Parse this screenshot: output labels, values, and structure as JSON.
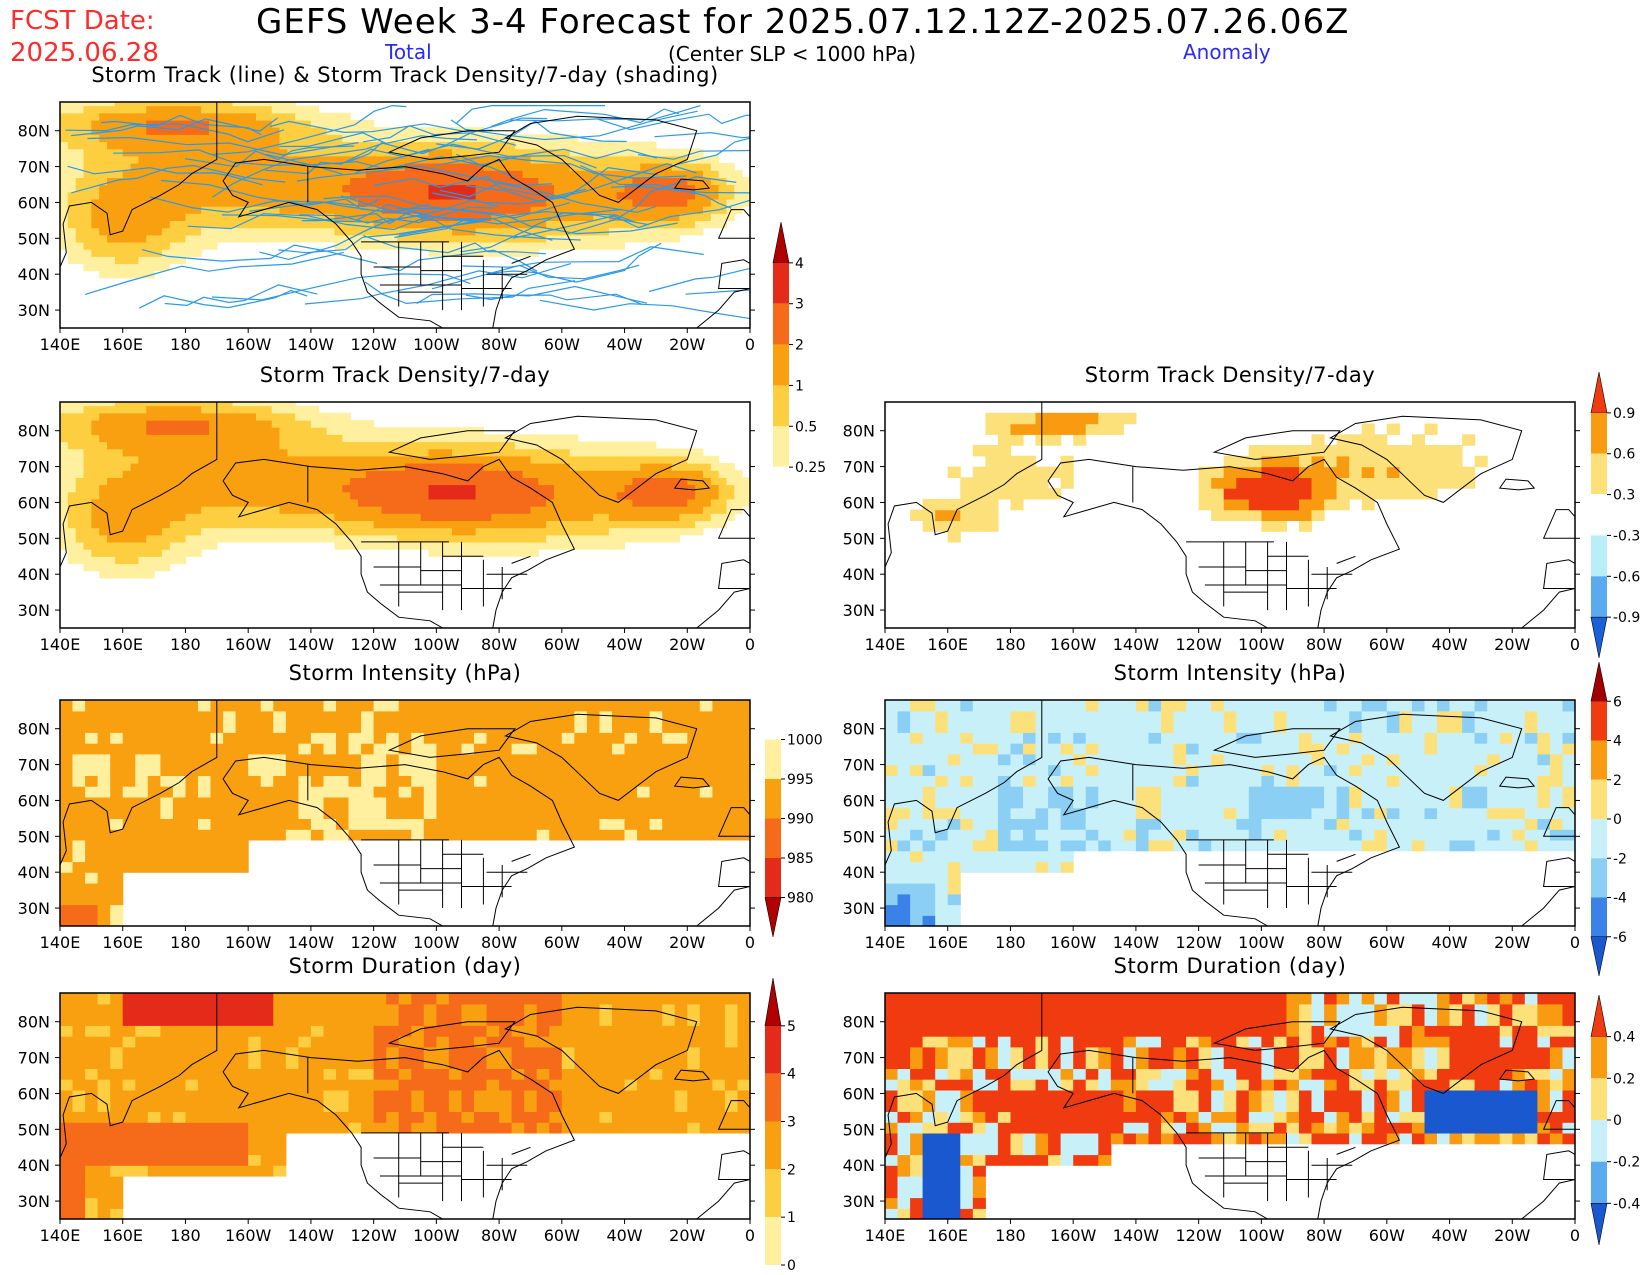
{
  "header": {
    "fcst_label": "FCST Date:",
    "fcst_date": "2025.06.28",
    "title": "GEFS Week 3-4 Forecast for 2025.07.12.12Z-2025.07.26.06Z",
    "total_label": "Total",
    "center_label": "(Center SLP < 1000 hPa)",
    "anomaly_label": "Anomaly"
  },
  "map": {
    "lat_labels": [
      "80N",
      "70N",
      "60N",
      "50N",
      "40N",
      "30N"
    ],
    "lon_labels": [
      "140E",
      "160E",
      "180",
      "160W",
      "140W",
      "120W",
      "100W",
      "80W",
      "60W",
      "40W",
      "20W",
      "0"
    ],
    "land_color": "#ffffff",
    "coast_color": "#000000"
  },
  "panels": [
    {
      "id": "track",
      "column": "total",
      "title": "Storm Track (line) & Storm Track Density/7-day (shading)",
      "scale": "density_total",
      "pattern": "density",
      "tracks": true
    },
    {
      "id": "density-total",
      "column": "total",
      "title": "Storm Track Density/7-day",
      "scale": "density_total",
      "pattern": "density"
    },
    {
      "id": "density-anom",
      "column": "anomaly",
      "title": "Storm Track Density/7-day",
      "scale": "density_anom",
      "pattern": "density_anom"
    },
    {
      "id": "intensity-total",
      "column": "total",
      "title": "Storm Intensity (hPa)",
      "scale": "intensity_total",
      "pattern": "intensity"
    },
    {
      "id": "intensity-anom",
      "column": "anomaly",
      "title": "Storm Intensity (hPa)",
      "scale": "intensity_anom",
      "pattern": "intensity_anom"
    },
    {
      "id": "duration-total",
      "column": "total",
      "title": "Storm Duration (day)",
      "scale": "duration_total",
      "pattern": "duration"
    },
    {
      "id": "duration-anom",
      "column": "anomaly",
      "title": "Storm Duration (day)",
      "scale": "duration_anom",
      "pattern": "duration_anom"
    }
  ],
  "colorbars": {
    "density_total": {
      "labels": [
        "4",
        "3",
        "2",
        "1",
        "0.5",
        "0.25"
      ],
      "colors": [
        "#b00000",
        "#e42a18",
        "#f56b1a",
        "#f8a010",
        "#fcce40",
        "#fff0a0",
        "#ffffff"
      ]
    },
    "density_anom": {
      "labels": [
        "0.9",
        "0.6",
        "0.3",
        "-0.3",
        "-0.6",
        "-0.9"
      ],
      "colors": [
        "#f03a10",
        "#f89b10",
        "#fce17a",
        "#ffffff",
        "#b8eef8",
        "#5aaaf0",
        "#1a60d8"
      ]
    },
    "intensity_total": {
      "labels": [
        "1000",
        "995",
        "990",
        "985",
        "980"
      ],
      "colors": [
        "#ffffff",
        "#fff0a0",
        "#f8a010",
        "#f56b1a",
        "#e42a18",
        "#b00000"
      ]
    },
    "intensity_anom": {
      "labels": [
        "6",
        "4",
        "2",
        "0",
        "-2",
        "-4",
        "-6"
      ],
      "colors": [
        "#a00000",
        "#f03a10",
        "#f89b10",
        "#fce17a",
        "#c8f0f8",
        "#8ccff4",
        "#3a82e8",
        "#1a58d0"
      ]
    },
    "duration_total": {
      "labels": [
        "5",
        "4",
        "3",
        "2",
        "1",
        "0"
      ],
      "colors": [
        "#b00000",
        "#e42a18",
        "#f56b1a",
        "#f8a010",
        "#fcce40",
        "#fff0a0"
      ]
    },
    "duration_anom": {
      "labels": [
        "0.4",
        "0.2",
        "0",
        "-0.2",
        "-0.4"
      ],
      "colors": [
        "#f03a10",
        "#f89b10",
        "#fce17a",
        "#c8f0f8",
        "#5aaaf0",
        "#1a58d0"
      ]
    }
  }
}
